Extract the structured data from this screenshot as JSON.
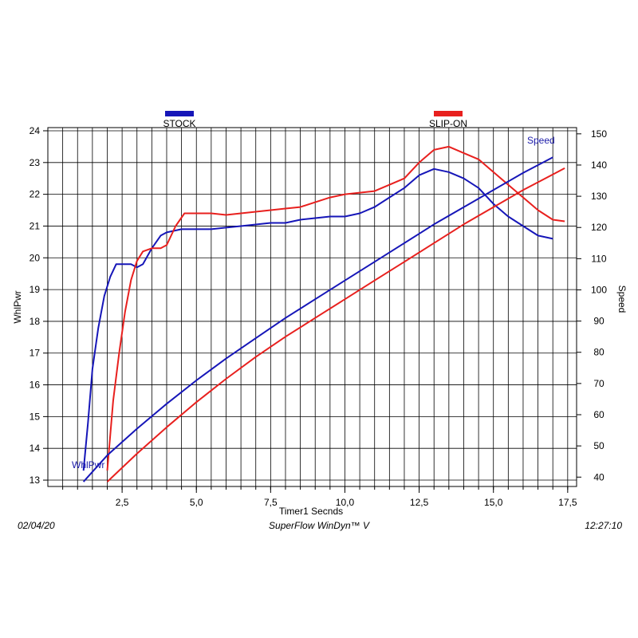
{
  "footer": {
    "date": "02/04/20",
    "software": "SuperFlow WinDyn™ V",
    "time": "12:27:10"
  },
  "chart_data": {
    "type": "line",
    "title": "",
    "xlabel": "Timer1 Secnds",
    "ylabel_left": "WhlPwr",
    "ylabel_right": "Speed",
    "xlim": [
      0.0,
      17.8
    ],
    "ylim_left": [
      12.8,
      24.1
    ],
    "ylim_right": [
      37,
      152
    ],
    "x_ticks": [
      "2,5",
      "5,0",
      "7,5",
      "10,0",
      "12,5",
      "15,0",
      "17,5"
    ],
    "y_left_ticks": [
      13,
      14,
      15,
      16,
      17,
      18,
      19,
      20,
      21,
      22,
      23,
      24
    ],
    "y_right_ticks": [
      40,
      50,
      60,
      70,
      80,
      90,
      100,
      110,
      120,
      130,
      140,
      150
    ],
    "grid": true,
    "legend": [
      {
        "name": "STOCK",
        "color": "#1616b8"
      },
      {
        "name": "SLIP-ON",
        "color": "#e8201e"
      }
    ],
    "annotations": [
      {
        "text": "WhlPwr",
        "color": "#1a1aa8"
      },
      {
        "text": "Speed",
        "color": "#1a1aa8"
      }
    ],
    "series": [
      {
        "name": "STOCK",
        "quantity": "WhlPwr",
        "axis": "left",
        "color": "#1616b8",
        "points": [
          [
            1.2,
            13.3
          ],
          [
            1.35,
            14.8
          ],
          [
            1.5,
            16.5
          ],
          [
            1.7,
            17.8
          ],
          [
            1.9,
            18.8
          ],
          [
            2.1,
            19.4
          ],
          [
            2.3,
            19.8
          ],
          [
            2.5,
            19.8
          ],
          [
            2.8,
            19.8
          ],
          [
            3.0,
            19.7
          ],
          [
            3.2,
            19.8
          ],
          [
            3.5,
            20.3
          ],
          [
            3.8,
            20.7
          ],
          [
            4.0,
            20.8
          ],
          [
            4.5,
            20.9
          ],
          [
            5.0,
            20.9
          ],
          [
            5.5,
            20.9
          ],
          [
            6.0,
            20.95
          ],
          [
            6.5,
            21.0
          ],
          [
            7.0,
            21.05
          ],
          [
            7.5,
            21.1
          ],
          [
            8.0,
            21.1
          ],
          [
            8.5,
            21.2
          ],
          [
            9.0,
            21.25
          ],
          [
            9.5,
            21.3
          ],
          [
            10.0,
            21.3
          ],
          [
            10.5,
            21.4
          ],
          [
            11.0,
            21.6
          ],
          [
            11.5,
            21.9
          ],
          [
            12.0,
            22.2
          ],
          [
            12.5,
            22.6
          ],
          [
            13.0,
            22.8
          ],
          [
            13.5,
            22.7
          ],
          [
            14.0,
            22.5
          ],
          [
            14.5,
            22.2
          ],
          [
            15.0,
            21.7
          ],
          [
            15.5,
            21.3
          ],
          [
            16.0,
            21.0
          ],
          [
            16.5,
            20.7
          ],
          [
            17.0,
            20.6
          ]
        ]
      },
      {
        "name": "SLIP-ON",
        "quantity": "WhlPwr",
        "axis": "left",
        "color": "#e8201e",
        "points": [
          [
            2.0,
            13.3
          ],
          [
            2.2,
            15.5
          ],
          [
            2.4,
            17.0
          ],
          [
            2.6,
            18.3
          ],
          [
            2.8,
            19.3
          ],
          [
            3.0,
            19.9
          ],
          [
            3.2,
            20.2
          ],
          [
            3.5,
            20.3
          ],
          [
            3.8,
            20.3
          ],
          [
            4.0,
            20.4
          ],
          [
            4.3,
            21.0
          ],
          [
            4.6,
            21.4
          ],
          [
            5.0,
            21.4
          ],
          [
            5.5,
            21.4
          ],
          [
            6.0,
            21.35
          ],
          [
            6.5,
            21.4
          ],
          [
            7.0,
            21.45
          ],
          [
            7.5,
            21.5
          ],
          [
            8.0,
            21.55
          ],
          [
            8.5,
            21.6
          ],
          [
            9.0,
            21.75
          ],
          [
            9.5,
            21.9
          ],
          [
            10.0,
            22.0
          ],
          [
            10.5,
            22.05
          ],
          [
            11.0,
            22.1
          ],
          [
            11.5,
            22.3
          ],
          [
            12.0,
            22.5
          ],
          [
            12.5,
            23.0
          ],
          [
            13.0,
            23.4
          ],
          [
            13.5,
            23.5
          ],
          [
            14.0,
            23.3
          ],
          [
            14.5,
            23.1
          ],
          [
            15.0,
            22.7
          ],
          [
            15.5,
            22.3
          ],
          [
            16.0,
            21.9
          ],
          [
            16.5,
            21.5
          ],
          [
            17.0,
            21.2
          ],
          [
            17.4,
            21.15
          ]
        ]
      },
      {
        "name": "STOCK",
        "quantity": "Speed",
        "axis": "right",
        "color": "#1616b8",
        "points": [
          [
            1.2,
            38.5
          ],
          [
            2.0,
            47
          ],
          [
            3.0,
            55.5
          ],
          [
            4.0,
            63.5
          ],
          [
            5.0,
            71
          ],
          [
            6.0,
            78
          ],
          [
            7.0,
            84.5
          ],
          [
            8.0,
            91
          ],
          [
            9.0,
            97
          ],
          [
            10.0,
            103
          ],
          [
            11.0,
            109
          ],
          [
            12.0,
            115
          ],
          [
            13.0,
            121
          ],
          [
            14.0,
            126.5
          ],
          [
            15.0,
            132
          ],
          [
            16.0,
            137.5
          ],
          [
            17.0,
            142.5
          ]
        ]
      },
      {
        "name": "SLIP-ON",
        "quantity": "Speed",
        "axis": "right",
        "color": "#e8201e",
        "points": [
          [
            2.0,
            38.5
          ],
          [
            3.0,
            47.5
          ],
          [
            4.0,
            56
          ],
          [
            5.0,
            64
          ],
          [
            6.0,
            71.5
          ],
          [
            7.0,
            78.5
          ],
          [
            8.0,
            85
          ],
          [
            9.0,
            91
          ],
          [
            10.0,
            97
          ],
          [
            11.0,
            103
          ],
          [
            12.0,
            109
          ],
          [
            13.0,
            115
          ],
          [
            14.0,
            121
          ],
          [
            15.0,
            126.5
          ],
          [
            16.0,
            132
          ],
          [
            17.0,
            137
          ],
          [
            17.4,
            139
          ]
        ]
      }
    ]
  }
}
